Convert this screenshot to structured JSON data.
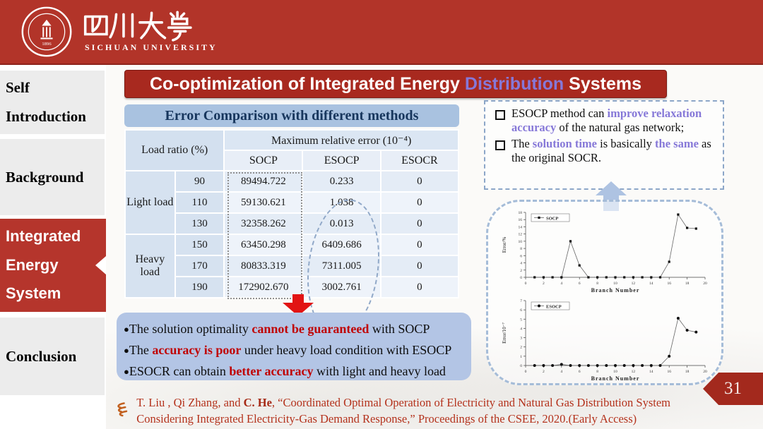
{
  "banner": {
    "university_name_cn": "四川大学",
    "university_name_en": "SICHUAN UNIVERSITY",
    "seal_year": "1896"
  },
  "sidebar": {
    "items": [
      {
        "label": "Self Introduction",
        "active": false
      },
      {
        "label": "Background",
        "active": false
      },
      {
        "label": "Integrated Energy System",
        "active": true
      },
      {
        "label": "Conclusion",
        "active": false
      }
    ]
  },
  "title": {
    "pre": "Co-optimization of Integrated Energy",
    "highlight": "Distribution",
    "post": "Systems"
  },
  "table": {
    "title": "Error Comparison with different methods",
    "load_ratio_header": "Load ratio (%)",
    "error_header": "Maximum relative error (10⁻⁴)",
    "methods": [
      "SOCP",
      "ESOCP",
      "ESOCR"
    ],
    "groups": [
      {
        "label": "Light load",
        "rows": [
          {
            "ratio": "90",
            "socp": "89494.722",
            "esocp": "0.233",
            "esocr": "0"
          },
          {
            "ratio": "110",
            "socp": "59130.621",
            "esocp": "1.038",
            "esocr": "0"
          },
          {
            "ratio": "130",
            "socp": "32358.262",
            "esocp": "0.013",
            "esocr": "0"
          }
        ]
      },
      {
        "label": "Heavy load",
        "rows": [
          {
            "ratio": "150",
            "socp": "63450.298",
            "esocp": "6409.686",
            "esocr": "0"
          },
          {
            "ratio": "170",
            "socp": "80833.319",
            "esocp": "7311.005",
            "esocr": "0"
          },
          {
            "ratio": "190",
            "socp": "172902.670",
            "esocp": "3002.761",
            "esocr": "0"
          }
        ]
      }
    ]
  },
  "notes": {
    "items": [
      {
        "pre": "ESOCP method can ",
        "em": "improve relaxation accuracy",
        "post": " of the natural gas network;"
      },
      {
        "pre": "The ",
        "em1": "solution time",
        "mid": " is basically ",
        "em2": "the same",
        "post": " as the original SOCR."
      }
    ]
  },
  "conclusions": {
    "bullet": "●",
    "items": [
      {
        "pre": "The solution optimality ",
        "em": "cannot be guaranteed",
        "post": " with SOCP"
      },
      {
        "pre": "The ",
        "em": "accuracy is poor",
        "post": " under heavy load condition with ESOCP"
      },
      {
        "pre": "ESOCR can obtain ",
        "em": "better accuracy",
        "post": " with light and heavy load"
      }
    ]
  },
  "chart_data": [
    {
      "type": "line",
      "legend": "SOCP",
      "marker": "square",
      "x": [
        1,
        2,
        3,
        4,
        5,
        6,
        7,
        8,
        9,
        10,
        11,
        12,
        13,
        14,
        15,
        16,
        17,
        18,
        19
      ],
      "y": [
        0,
        0,
        0,
        0,
        10,
        3.3,
        0,
        0,
        0,
        0,
        0,
        0,
        0,
        0,
        0,
        4.3,
        17.4,
        13.7,
        13.5
      ],
      "xlabel": "Branch Number",
      "ylabel": "Error/%",
      "xlim": [
        0,
        20
      ],
      "xtick_step": 2,
      "ylim": [
        0,
        18
      ],
      "ytick_step": 2,
      "grid": false,
      "legend_position": "top-left"
    },
    {
      "type": "line",
      "legend": "ESOCP",
      "marker": "circle",
      "x": [
        1,
        2,
        3,
        4,
        5,
        6,
        7,
        8,
        9,
        10,
        11,
        12,
        13,
        14,
        15,
        16,
        17,
        18,
        19
      ],
      "y": [
        0,
        0,
        0,
        0.12,
        0,
        0,
        0,
        0,
        0,
        0,
        0,
        0,
        0,
        0,
        0,
        1.0,
        5.1,
        3.8,
        3.6
      ],
      "xlabel": "Branch Number",
      "ylabel": "Error/10⁻⁷",
      "xlim": [
        0,
        20
      ],
      "xtick_step": 2,
      "ylim": [
        0,
        7
      ],
      "ytick_step": 1,
      "grid": false,
      "legend_position": "top-left"
    }
  ],
  "page_number": "31",
  "citation": {
    "pre": "T. Liu , Qi Zhang,  and ",
    "author_bold": "C. He",
    "post": ", “Coordinated Optimal Operation of Electricity and Natural Gas Distribution System Considering Integrated Electricity-Gas Demand Response,” Proceedings of the CSEE,  2020.(Early Access)"
  },
  "colors": {
    "banner_red": "#b23429",
    "title_bar_red": "#a8291f",
    "active_nav_red": "#b5352c",
    "highlight_purple": "#8678d8",
    "emphasis_red": "#c00000",
    "conclusion_box_blue": "#b3c5e5",
    "table_band_blue": "#a9c2e0",
    "page_tag_red": "#a3291d",
    "citation_red": "#b4321c"
  }
}
